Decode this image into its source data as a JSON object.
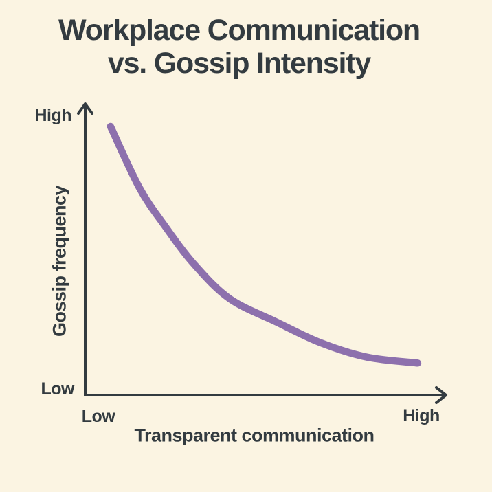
{
  "colors": {
    "background": "#fbf4e2",
    "ink": "#333b40",
    "curve": "#8d70ad"
  },
  "title": {
    "line1": "Workplace Communication",
    "line2": "vs. Gossip Intensity"
  },
  "y_axis": {
    "label": "Gossip frequency",
    "tick_top": "High",
    "tick_bottom": "Low"
  },
  "x_axis": {
    "label": "Transparent communication",
    "tick_left": "Low",
    "tick_right": "High"
  },
  "chart_data": {
    "type": "line",
    "title": "Workplace Communication vs. Gossip Intensity",
    "xlabel": "Transparent communication",
    "ylabel": "Gossip frequency",
    "x_range": [
      "Low",
      "High"
    ],
    "y_range": [
      "Low",
      "High"
    ],
    "grid": false,
    "legend": false,
    "series": [
      {
        "name": "Gossip frequency",
        "shape": "convex-decreasing",
        "color": "#8d70ad",
        "points_normalized_low0_high1": [
          {
            "x": 0.07,
            "y": 0.92
          },
          {
            "x": 0.15,
            "y": 0.71
          },
          {
            "x": 0.22,
            "y": 0.58
          },
          {
            "x": 0.3,
            "y": 0.45
          },
          {
            "x": 0.4,
            "y": 0.33
          },
          {
            "x": 0.53,
            "y": 0.25
          },
          {
            "x": 0.65,
            "y": 0.18
          },
          {
            "x": 0.78,
            "y": 0.13
          },
          {
            "x": 0.92,
            "y": 0.11
          }
        ]
      }
    ]
  }
}
